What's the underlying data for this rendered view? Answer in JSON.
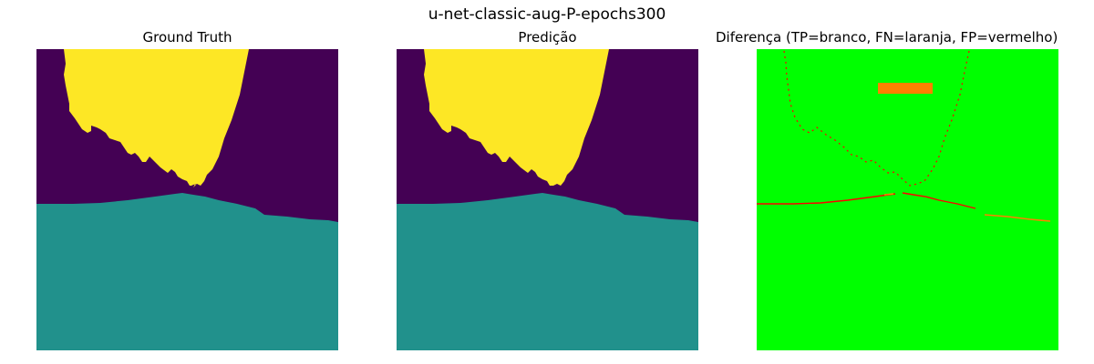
{
  "figure": {
    "title": "u-net-classic-aug-P-epochs300"
  },
  "panels": [
    {
      "id": "ground-truth",
      "title": "Ground Truth"
    },
    {
      "id": "prediction",
      "title": "Predição"
    },
    {
      "id": "difference",
      "title": "Diferença (TP=branco, FN=laranja, FP=vermelho)"
    }
  ],
  "colors": {
    "background_class": "#440154",
    "sky_class": "#fde725",
    "water_class": "#21918c",
    "diff_background": "#00ff00",
    "false_negative": "#ff8000",
    "false_positive": "#ff0000"
  }
}
